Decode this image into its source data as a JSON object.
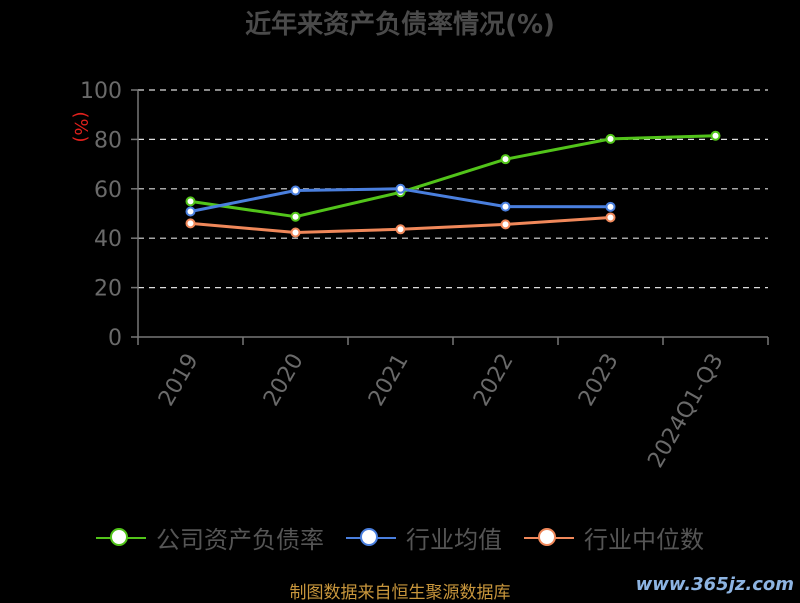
{
  "title": "近年来资产负债率情况(%)",
  "source": "制图数据来自恒生聚源数据库",
  "watermark": "www.365jz.com",
  "chart_data": {
    "type": "line",
    "title": "近年来资产负债率情况(%)",
    "ylabel": "(%)",
    "ylim": [
      0,
      100
    ],
    "yticks": [
      0,
      20,
      40,
      60,
      80,
      100
    ],
    "grid": true,
    "legend_position": "bottom",
    "categories": [
      "2019",
      "2020",
      "2021",
      "2022",
      "2023",
      "2024Q1-Q3"
    ],
    "series": [
      {
        "name": "公司资产负债率",
        "color": "#52c41a",
        "values": [
          54.9,
          48.7,
          58.6,
          72.0,
          80.2,
          81.5
        ]
      },
      {
        "name": "行业均值",
        "color": "#4a7fde",
        "values": [
          50.8,
          59.3,
          60.0,
          52.8,
          52.7,
          null
        ]
      },
      {
        "name": "行业中位数",
        "color": "#f0885a",
        "values": [
          46.0,
          42.3,
          43.6,
          45.6,
          48.4,
          null
        ]
      }
    ]
  }
}
